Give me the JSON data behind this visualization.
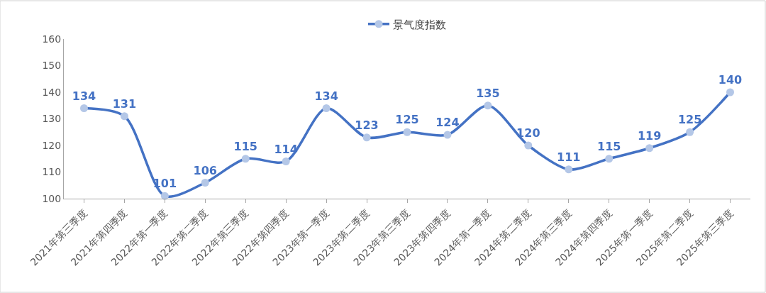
{
  "chart_data": {
    "type": "line",
    "categories": [
      "2021年第三季度",
      "2021年第四季度",
      "2022年第一季度",
      "2022年第二季度",
      "2022年第三季度",
      "2022年第四季度",
      "2023年第一季度",
      "2023年第二季度",
      "2023年第三季度",
      "2023年第四季度",
      "2024年第一季度",
      "2024年第二季度",
      "2024年第三季度",
      "2024年第四季度",
      "2025年第一季度",
      "2025年第二季度",
      "2025年第三季度"
    ],
    "series": [
      {
        "name": "景气度指数",
        "color": "#4472c4",
        "values": [
          134,
          131,
          101,
          106,
          115,
          114,
          134,
          123,
          125,
          124,
          135,
          120,
          111,
          115,
          119,
          125,
          140
        ]
      }
    ],
    "ylim": [
      100,
      160
    ],
    "yticks": [
      100,
      110,
      120,
      130,
      140,
      150,
      160
    ],
    "data_labels": true,
    "legend": "top",
    "grid": false,
    "marker": "circle"
  }
}
